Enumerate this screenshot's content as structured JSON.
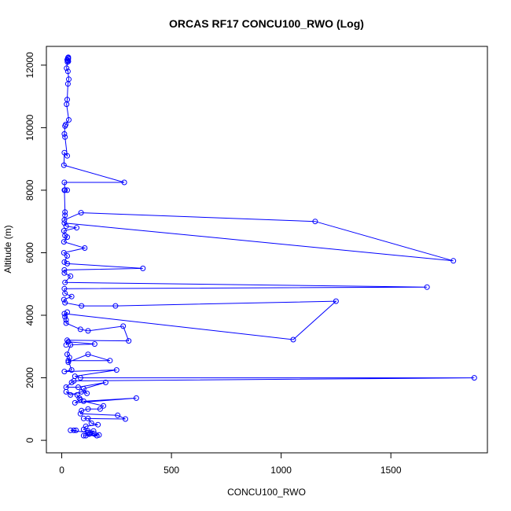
{
  "chart_data": {
    "type": "line",
    "title": "ORCAS RF17 CONCU100_RWO (Log)",
    "xlabel": "CONCU100_RWO",
    "ylabel": "Altitude (m)",
    "xlim": [
      -70,
      1940
    ],
    "ylim": [
      -400,
      12600
    ],
    "xticks": [
      0,
      500,
      1000,
      1500
    ],
    "yticks": [
      0,
      2000,
      4000,
      6000,
      8000,
      10000,
      12000
    ],
    "grid": false,
    "legend": "none",
    "colors": {
      "series": "#0000ff",
      "axes": "#000000",
      "background": "#ffffff"
    },
    "markers": "open-circle",
    "series": [
      {
        "points": [
          [
            30,
            12250
          ],
          [
            28,
            12230
          ],
          [
            30,
            12200
          ],
          [
            25,
            12170
          ],
          [
            28,
            12150
          ],
          [
            30,
            12120
          ],
          [
            26,
            12100
          ],
          [
            22,
            11900
          ],
          [
            28,
            11800
          ],
          [
            32,
            11550
          ],
          [
            28,
            11400
          ],
          [
            25,
            10900
          ],
          [
            22,
            10750
          ],
          [
            32,
            10250
          ],
          [
            18,
            10100
          ],
          [
            15,
            10050
          ],
          [
            12,
            9800
          ],
          [
            15,
            9700
          ],
          [
            25,
            9100
          ],
          [
            12,
            9200
          ],
          [
            10,
            8800
          ],
          [
            285,
            8250
          ],
          [
            12,
            8250
          ],
          [
            15,
            8000
          ],
          [
            25,
            8000
          ],
          [
            12,
            8000
          ],
          [
            15,
            7300
          ],
          [
            15,
            7200
          ],
          [
            12,
            7050
          ],
          [
            88,
            7280
          ],
          [
            1155,
            7000
          ],
          [
            1785,
            5740
          ],
          [
            12,
            6950
          ],
          [
            20,
            6850
          ],
          [
            68,
            6800
          ],
          [
            10,
            6700
          ],
          [
            15,
            6550
          ],
          [
            25,
            6500
          ],
          [
            10,
            6350
          ],
          [
            105,
            6150
          ],
          [
            10,
            6000
          ],
          [
            25,
            5900
          ],
          [
            12,
            5700
          ],
          [
            25,
            5650
          ],
          [
            370,
            5500
          ],
          [
            12,
            5450
          ],
          [
            12,
            5350
          ],
          [
            40,
            5250
          ],
          [
            15,
            5050
          ],
          [
            1665,
            4900
          ],
          [
            12,
            4850
          ],
          [
            15,
            4700
          ],
          [
            45,
            4600
          ],
          [
            10,
            4500
          ],
          [
            15,
            4400
          ],
          [
            90,
            4300
          ],
          [
            245,
            4300
          ],
          [
            1250,
            4450
          ],
          [
            1055,
            3220
          ],
          [
            12,
            4050
          ],
          [
            15,
            3950
          ],
          [
            25,
            4100
          ],
          [
            20,
            3850
          ],
          [
            20,
            3750
          ],
          [
            85,
            3550
          ],
          [
            120,
            3500
          ],
          [
            280,
            3650
          ],
          [
            305,
            3180
          ],
          [
            25,
            3200
          ],
          [
            20,
            3050
          ],
          [
            30,
            3150
          ],
          [
            150,
            3080
          ],
          [
            40,
            3050
          ],
          [
            25,
            2750
          ],
          [
            35,
            2650
          ],
          [
            30,
            2500
          ],
          [
            120,
            2750
          ],
          [
            220,
            2550
          ],
          [
            30,
            2550
          ],
          [
            45,
            2250
          ],
          [
            12,
            2200
          ],
          [
            250,
            2250
          ],
          [
            60,
            2050
          ],
          [
            85,
            2000
          ],
          [
            1880,
            2000
          ],
          [
            55,
            1900
          ],
          [
            45,
            1850
          ],
          [
            20,
            1700
          ],
          [
            75,
            1700
          ],
          [
            200,
            1850
          ],
          [
            100,
            1650
          ],
          [
            115,
            1500
          ],
          [
            90,
            1550
          ],
          [
            40,
            1450
          ],
          [
            20,
            1550
          ],
          [
            70,
            1450
          ],
          [
            80,
            1350
          ],
          [
            85,
            1300
          ],
          [
            60,
            1200
          ],
          [
            340,
            1350
          ],
          [
            100,
            1250
          ],
          [
            190,
            1100
          ],
          [
            175,
            1000
          ],
          [
            120,
            1000
          ],
          [
            90,
            950
          ],
          [
            85,
            850
          ],
          [
            255,
            800
          ],
          [
            290,
            680
          ],
          [
            100,
            700
          ],
          [
            120,
            700
          ],
          [
            135,
            550
          ],
          [
            165,
            500
          ],
          [
            110,
            450
          ],
          [
            100,
            350
          ],
          [
            120,
            300
          ],
          [
            145,
            300
          ],
          [
            125,
            200
          ],
          [
            160,
            150
          ],
          [
            110,
            150
          ],
          [
            100,
            150
          ],
          [
            170,
            170
          ],
          [
            150,
            200
          ],
          [
            120,
            250
          ],
          [
            40,
            320
          ],
          [
            55,
            320
          ],
          [
            65,
            320
          ]
        ]
      }
    ]
  }
}
